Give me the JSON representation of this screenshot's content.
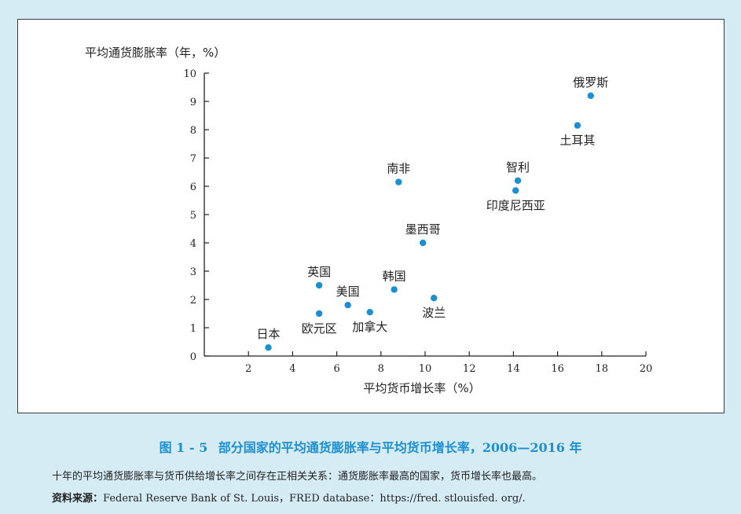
{
  "chart_data": {
    "type": "scatter",
    "ylabel": "平均通货膨胀率（年，%）",
    "xlabel": "平均货币增长率（%）",
    "xlim": [
      0,
      20
    ],
    "ylim": [
      0,
      10
    ],
    "x_ticks": [
      "2",
      "4",
      "6",
      "8",
      "10",
      "12",
      "14",
      "16",
      "18",
      "20"
    ],
    "y_ticks": [
      "0",
      "1",
      "2",
      "3",
      "4",
      "5",
      "6",
      "7",
      "8",
      "9",
      "10"
    ],
    "point_color": "#1d8fd1",
    "points": [
      {
        "label": "日本",
        "x": 2.9,
        "y": 0.3,
        "label_pos": "above"
      },
      {
        "label": "欧元区",
        "x": 5.2,
        "y": 1.5,
        "label_pos": "below"
      },
      {
        "label": "英国",
        "x": 5.2,
        "y": 2.5,
        "label_pos": "above"
      },
      {
        "label": "美国",
        "x": 6.5,
        "y": 1.8,
        "label_pos": "above"
      },
      {
        "label": "加拿大",
        "x": 7.5,
        "y": 1.55,
        "label_pos": "below"
      },
      {
        "label": "韩国",
        "x": 8.6,
        "y": 2.35,
        "label_pos": "above"
      },
      {
        "label": "南非",
        "x": 8.8,
        "y": 6.15,
        "label_pos": "above"
      },
      {
        "label": "墨西哥",
        "x": 9.9,
        "y": 4.0,
        "label_pos": "above"
      },
      {
        "label": "波兰",
        "x": 10.4,
        "y": 2.05,
        "label_pos": "below"
      },
      {
        "label": "印度尼西亚",
        "x": 14.1,
        "y": 5.85,
        "label_pos": "below"
      },
      {
        "label": "智利",
        "x": 14.2,
        "y": 6.2,
        "label_pos": "above"
      },
      {
        "label": "土耳其",
        "x": 16.9,
        "y": 8.15,
        "label_pos": "below"
      },
      {
        "label": "俄罗斯",
        "x": 17.5,
        "y": 9.2,
        "label_pos": "above"
      }
    ]
  },
  "caption": {
    "figure_no": "图 1 - 5",
    "title": "部分国家的平均通货膨胀率与平均货币增长率，2006—2016 年"
  },
  "description": "十年的平均通货膨胀率与货币供给增长率之间存在正相关关系：通货膨胀率最高的国家，货币增长率也最高。",
  "source": {
    "label": "资料来源：",
    "text": "Federal Reserve Bank of St. Louis，FRED database：https://fred. stlouisfed. org/."
  }
}
